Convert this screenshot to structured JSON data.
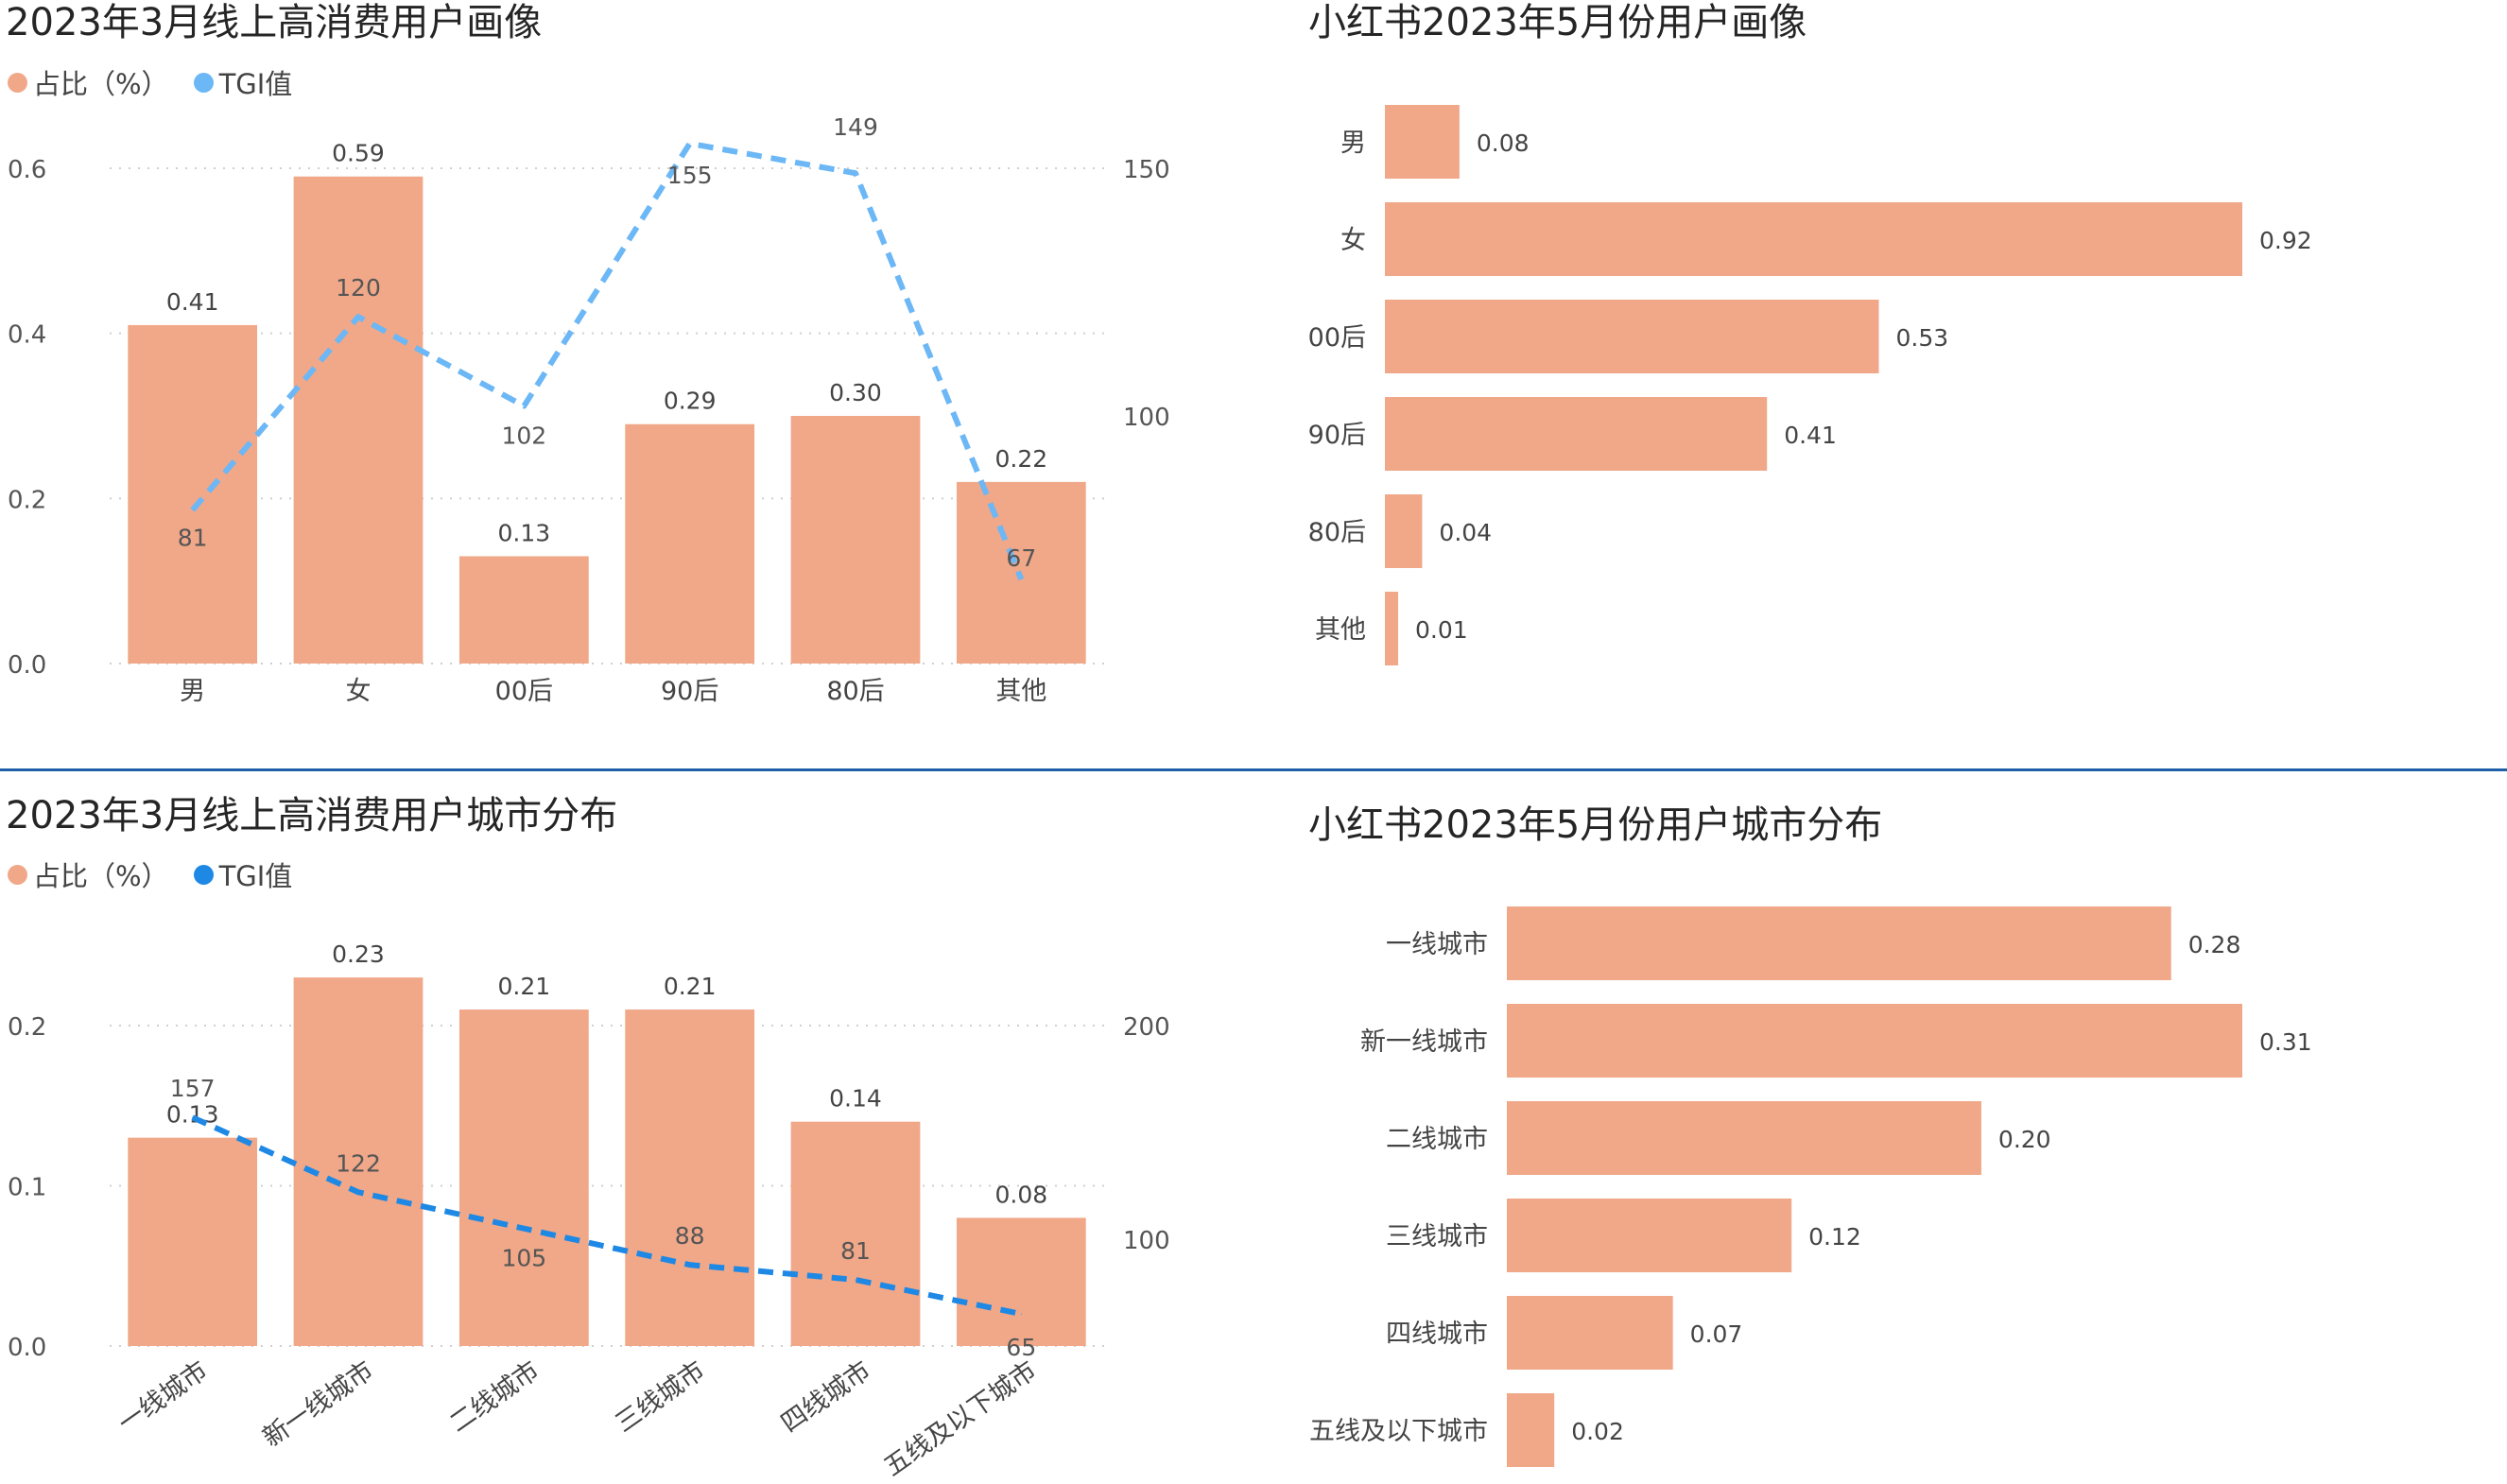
{
  "colors": {
    "bar": "#f0a889",
    "tgi_top": "#6cb7f5",
    "tgi_bottom": "#1e88e5",
    "divider": "#1f5fa8"
  },
  "chart_data": [
    {
      "id": "tl",
      "type": "bar",
      "title": "2023年3月线上高消费用户画像",
      "legend": [
        {
          "name": "占比（%）",
          "color": "#f0a889"
        },
        {
          "name": "TGI值",
          "color": "#6cb7f5"
        }
      ],
      "categories": [
        "男",
        "女",
        "00后",
        "90后",
        "80后",
        "其他"
      ],
      "series": [
        {
          "name": "占比（%）",
          "type": "bar",
          "axis": "left",
          "values": [
            0.41,
            0.59,
            0.13,
            0.29,
            0.3,
            0.22
          ],
          "labels": [
            "0.41",
            "0.59",
            "0.13",
            "0.29",
            "0.30",
            "0.22"
          ]
        },
        {
          "name": "TGI值",
          "type": "line",
          "style": "dashed",
          "axis": "right",
          "values": [
            81,
            120,
            102,
            155,
            149,
            67
          ],
          "labels": [
            "81",
            "120",
            "102",
            "155",
            "149",
            "67"
          ]
        }
      ],
      "y_left": {
        "min": 0,
        "max": 0.6,
        "ticks": [
          "0.0",
          "0.2",
          "0.4",
          "0.6"
        ]
      },
      "y_right": {
        "min": 50,
        "max": 150,
        "ticks": [
          "100",
          "150"
        ]
      },
      "grid": true
    },
    {
      "id": "tr",
      "type": "bar",
      "orientation": "horizontal",
      "title": "小红书2023年5月份用户画像",
      "categories": [
        "男",
        "女",
        "00后",
        "90后",
        "80后",
        "其他"
      ],
      "values": [
        0.08,
        0.92,
        0.53,
        0.41,
        0.04,
        0.01
      ],
      "labels": [
        "0.08",
        "0.92",
        "0.53",
        "0.41",
        "0.04",
        "0.01"
      ],
      "xlim": [
        0,
        0.92
      ]
    },
    {
      "id": "bl",
      "type": "bar",
      "title": "2023年3月线上高消费用户城市分布",
      "legend": [
        {
          "name": "占比（%）",
          "color": "#f0a889"
        },
        {
          "name": "TGI值",
          "color": "#1e88e5"
        }
      ],
      "categories": [
        "一线城市",
        "新一线城市",
        "二线城市",
        "三线城市",
        "四线城市",
        "五线及以下城市"
      ],
      "series": [
        {
          "name": "占比（%）",
          "type": "bar",
          "axis": "left",
          "values": [
            0.13,
            0.23,
            0.21,
            0.21,
            0.14,
            0.08
          ],
          "labels": [
            "0.13",
            "0.23",
            "0.21",
            "0.21",
            "0.14",
            "0.08"
          ]
        },
        {
          "name": "TGI值",
          "type": "line",
          "style": "dashed",
          "axis": "right",
          "values": [
            157,
            122,
            105,
            88,
            81,
            65
          ],
          "labels": [
            "157",
            "122",
            "105",
            "88",
            "81",
            "65"
          ]
        }
      ],
      "y_left": {
        "min": 0,
        "max": 0.2,
        "ticks": [
          "0.0",
          "0.1",
          "0.2"
        ]
      },
      "y_right": {
        "min": 50,
        "max": 200,
        "ticks": [
          "100",
          "200"
        ]
      },
      "grid": true
    },
    {
      "id": "br",
      "type": "bar",
      "orientation": "horizontal",
      "title": "小红书2023年5月份用户城市分布",
      "categories": [
        "一线城市",
        "新一线城市",
        "二线城市",
        "三线城市",
        "四线城市",
        "五线及以下城市"
      ],
      "values": [
        0.28,
        0.31,
        0.2,
        0.12,
        0.07,
        0.02
      ],
      "labels": [
        "0.28",
        "0.31",
        "0.20",
        "0.12",
        "0.07",
        "0.02"
      ],
      "xlim": [
        0,
        0.31
      ]
    }
  ]
}
